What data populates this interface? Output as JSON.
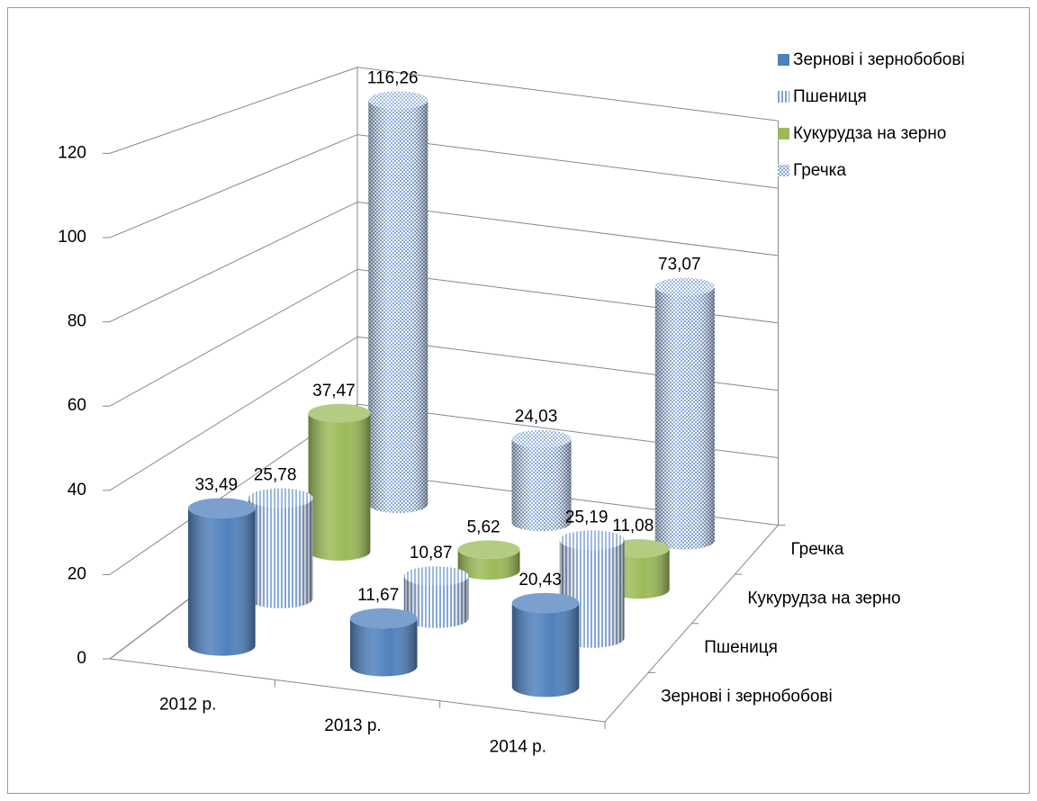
{
  "chart_data": {
    "type": "bar3d",
    "categories": [
      "2012 р.",
      "2013 р.",
      "2014 р."
    ],
    "series": [
      {
        "name": "Зернові і зернобобові",
        "color": "#4f81bd",
        "pattern": "solid",
        "values": [
          33.49,
          11.67,
          20.43
        ],
        "value_labels": [
          "33,49",
          "11,67",
          "20,43"
        ]
      },
      {
        "name": "Пшениця",
        "color": "#7ea3d6",
        "pattern": "vertical",
        "values": [
          25.78,
          10.87,
          25.19
        ],
        "value_labels": [
          "25,78",
          "10,87",
          "25,19"
        ]
      },
      {
        "name": "Кукурудза на зерно",
        "color": "#9bbb59",
        "pattern": "solid",
        "values": [
          37.47,
          5.62,
          11.08
        ],
        "value_labels": [
          "37,47",
          "5,62",
          "11,08"
        ]
      },
      {
        "name": "Гречка",
        "color": "#7ea3d6",
        "pattern": "checker",
        "values": [
          116.26,
          24.03,
          73.07
        ],
        "value_labels": [
          "116,26",
          "24,03",
          "73,07"
        ]
      }
    ],
    "ylim": [
      0,
      120
    ],
    "yticks": [
      0,
      20,
      40,
      60,
      80,
      100,
      120
    ],
    "grid": true,
    "legend": "top-right"
  }
}
